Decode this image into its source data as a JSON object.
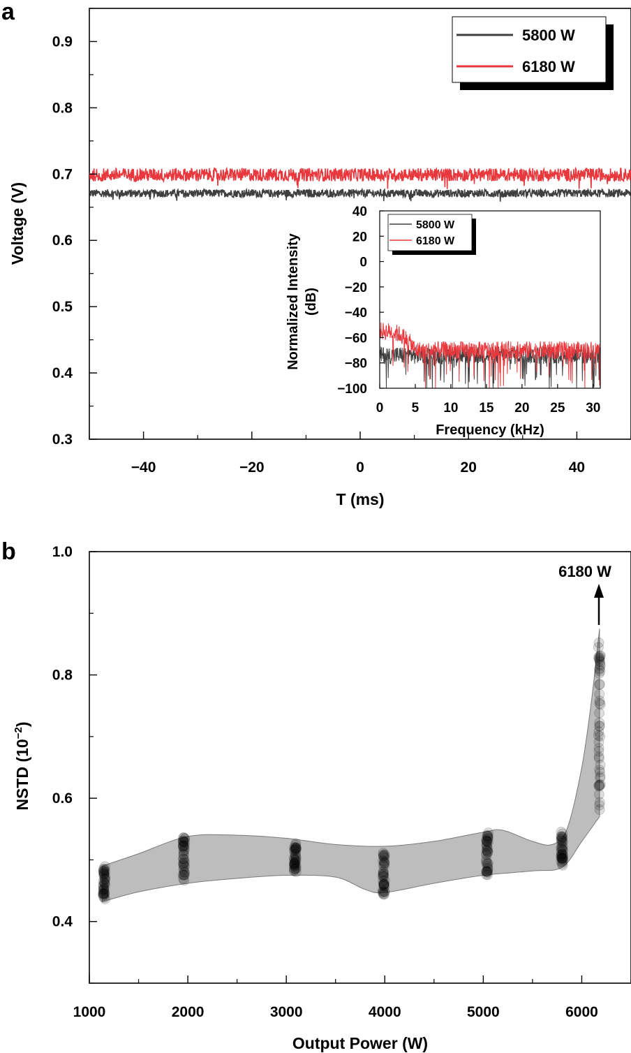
{
  "chart_data": [
    {
      "panel": "a",
      "type": "line",
      "xlabel": "T (ms)",
      "ylabel": "Voltage (V)",
      "xlim": [
        -50,
        50
      ],
      "ylim": [
        0.3,
        0.95
      ],
      "xticks": [
        -40,
        -20,
        0,
        20,
        40
      ],
      "xtick_labels": [
        "−40",
        "−20",
        "0",
        "20",
        "40"
      ],
      "yticks": [
        0.3,
        0.4,
        0.5,
        0.6,
        0.7,
        0.8,
        0.9
      ],
      "ytick_labels": [
        "0.3",
        "0.4",
        "0.5",
        "0.6",
        "0.7",
        "0.8",
        "0.9"
      ],
      "legend_position": "top-right",
      "series": [
        {
          "name": "5800 W",
          "color": "#3f3f3f",
          "mean": 0.671,
          "noise_amplitude": 0.006
        },
        {
          "name": "6180 W",
          "color": "#e8383d",
          "mean": 0.699,
          "noise_amplitude": 0.01
        }
      ],
      "inset": {
        "type": "line",
        "xlabel": "Frequency (kHz)",
        "ylabel_line1": "Normalized Intensity",
        "ylabel_line2": "(dB)",
        "xlim": [
          0,
          31
        ],
        "ylim": [
          -100,
          40
        ],
        "xticks": [
          0,
          5,
          10,
          15,
          20,
          25,
          30
        ],
        "xtick_labels": [
          "0",
          "5",
          "10",
          "15",
          "20",
          "25",
          "30"
        ],
        "yticks": [
          -100,
          -80,
          -60,
          -40,
          -20,
          0,
          20,
          40
        ],
        "ytick_labels": [
          "−100",
          "−80",
          "−60",
          "−40",
          "−20",
          "0",
          "20",
          "40"
        ],
        "legend_position": "top-left",
        "series": [
          {
            "name": "5800 W",
            "color": "#3f3f3f",
            "baseline_db": -74
          },
          {
            "name": "6180 W",
            "color": "#e8383d",
            "baseline_db": -70,
            "low_freq_peak_db": -55,
            "peak_range_khz": [
              0,
              5
            ]
          }
        ]
      }
    },
    {
      "panel": "b",
      "type": "scatter",
      "xlabel": "Output Power (W)",
      "ylabel_main": "NSTD (10",
      "ylabel_exp": "−2",
      "ylabel_close": ")",
      "xlim": [
        1000,
        6500
      ],
      "ylim": [
        0.3,
        1.0
      ],
      "xticks": [
        1000,
        2000,
        3000,
        4000,
        5000,
        6000
      ],
      "xtick_labels": [
        "1000",
        "2000",
        "3000",
        "4000",
        "5000",
        "6000"
      ],
      "yticks": [
        0.4,
        0.6,
        0.8,
        1.0
      ],
      "ytick_labels": [
        "0.4",
        "0.6",
        "0.8",
        "1.0"
      ],
      "annotation": "6180 W",
      "groups": [
        {
          "x": 1150,
          "min": 0.435,
          "max": 0.49
        },
        {
          "x": 1960,
          "min": 0.46,
          "max": 0.54
        },
        {
          "x": 3090,
          "min": 0.478,
          "max": 0.528
        },
        {
          "x": 3990,
          "min": 0.44,
          "max": 0.52
        },
        {
          "x": 5040,
          "min": 0.47,
          "max": 0.55
        },
        {
          "x": 5800,
          "min": 0.49,
          "max": 0.55
        },
        {
          "x": 6180,
          "min": 0.57,
          "max": 0.875
        }
      ],
      "band_upper": [
        [
          1000,
          0.49
        ],
        [
          1500,
          0.51
        ],
        [
          2000,
          0.538
        ],
        [
          2500,
          0.54
        ],
        [
          3000,
          0.535
        ],
        [
          3500,
          0.525
        ],
        [
          4000,
          0.522
        ],
        [
          4500,
          0.53
        ],
        [
          5000,
          0.545
        ],
        [
          5200,
          0.548
        ],
        [
          5500,
          0.53
        ],
        [
          5700,
          0.525
        ],
        [
          5850,
          0.55
        ],
        [
          6000,
          0.65
        ],
        [
          6100,
          0.76
        ],
        [
          6180,
          0.875
        ]
      ],
      "band_lower": [
        [
          1000,
          0.432
        ],
        [
          1500,
          0.448
        ],
        [
          2000,
          0.462
        ],
        [
          2500,
          0.47
        ],
        [
          3000,
          0.475
        ],
        [
          3500,
          0.472
        ],
        [
          3800,
          0.452
        ],
        [
          4000,
          0.447
        ],
        [
          4500,
          0.462
        ],
        [
          5000,
          0.475
        ],
        [
          5500,
          0.482
        ],
        [
          5800,
          0.488
        ],
        [
          6000,
          0.53
        ],
        [
          6180,
          0.57
        ]
      ]
    }
  ]
}
